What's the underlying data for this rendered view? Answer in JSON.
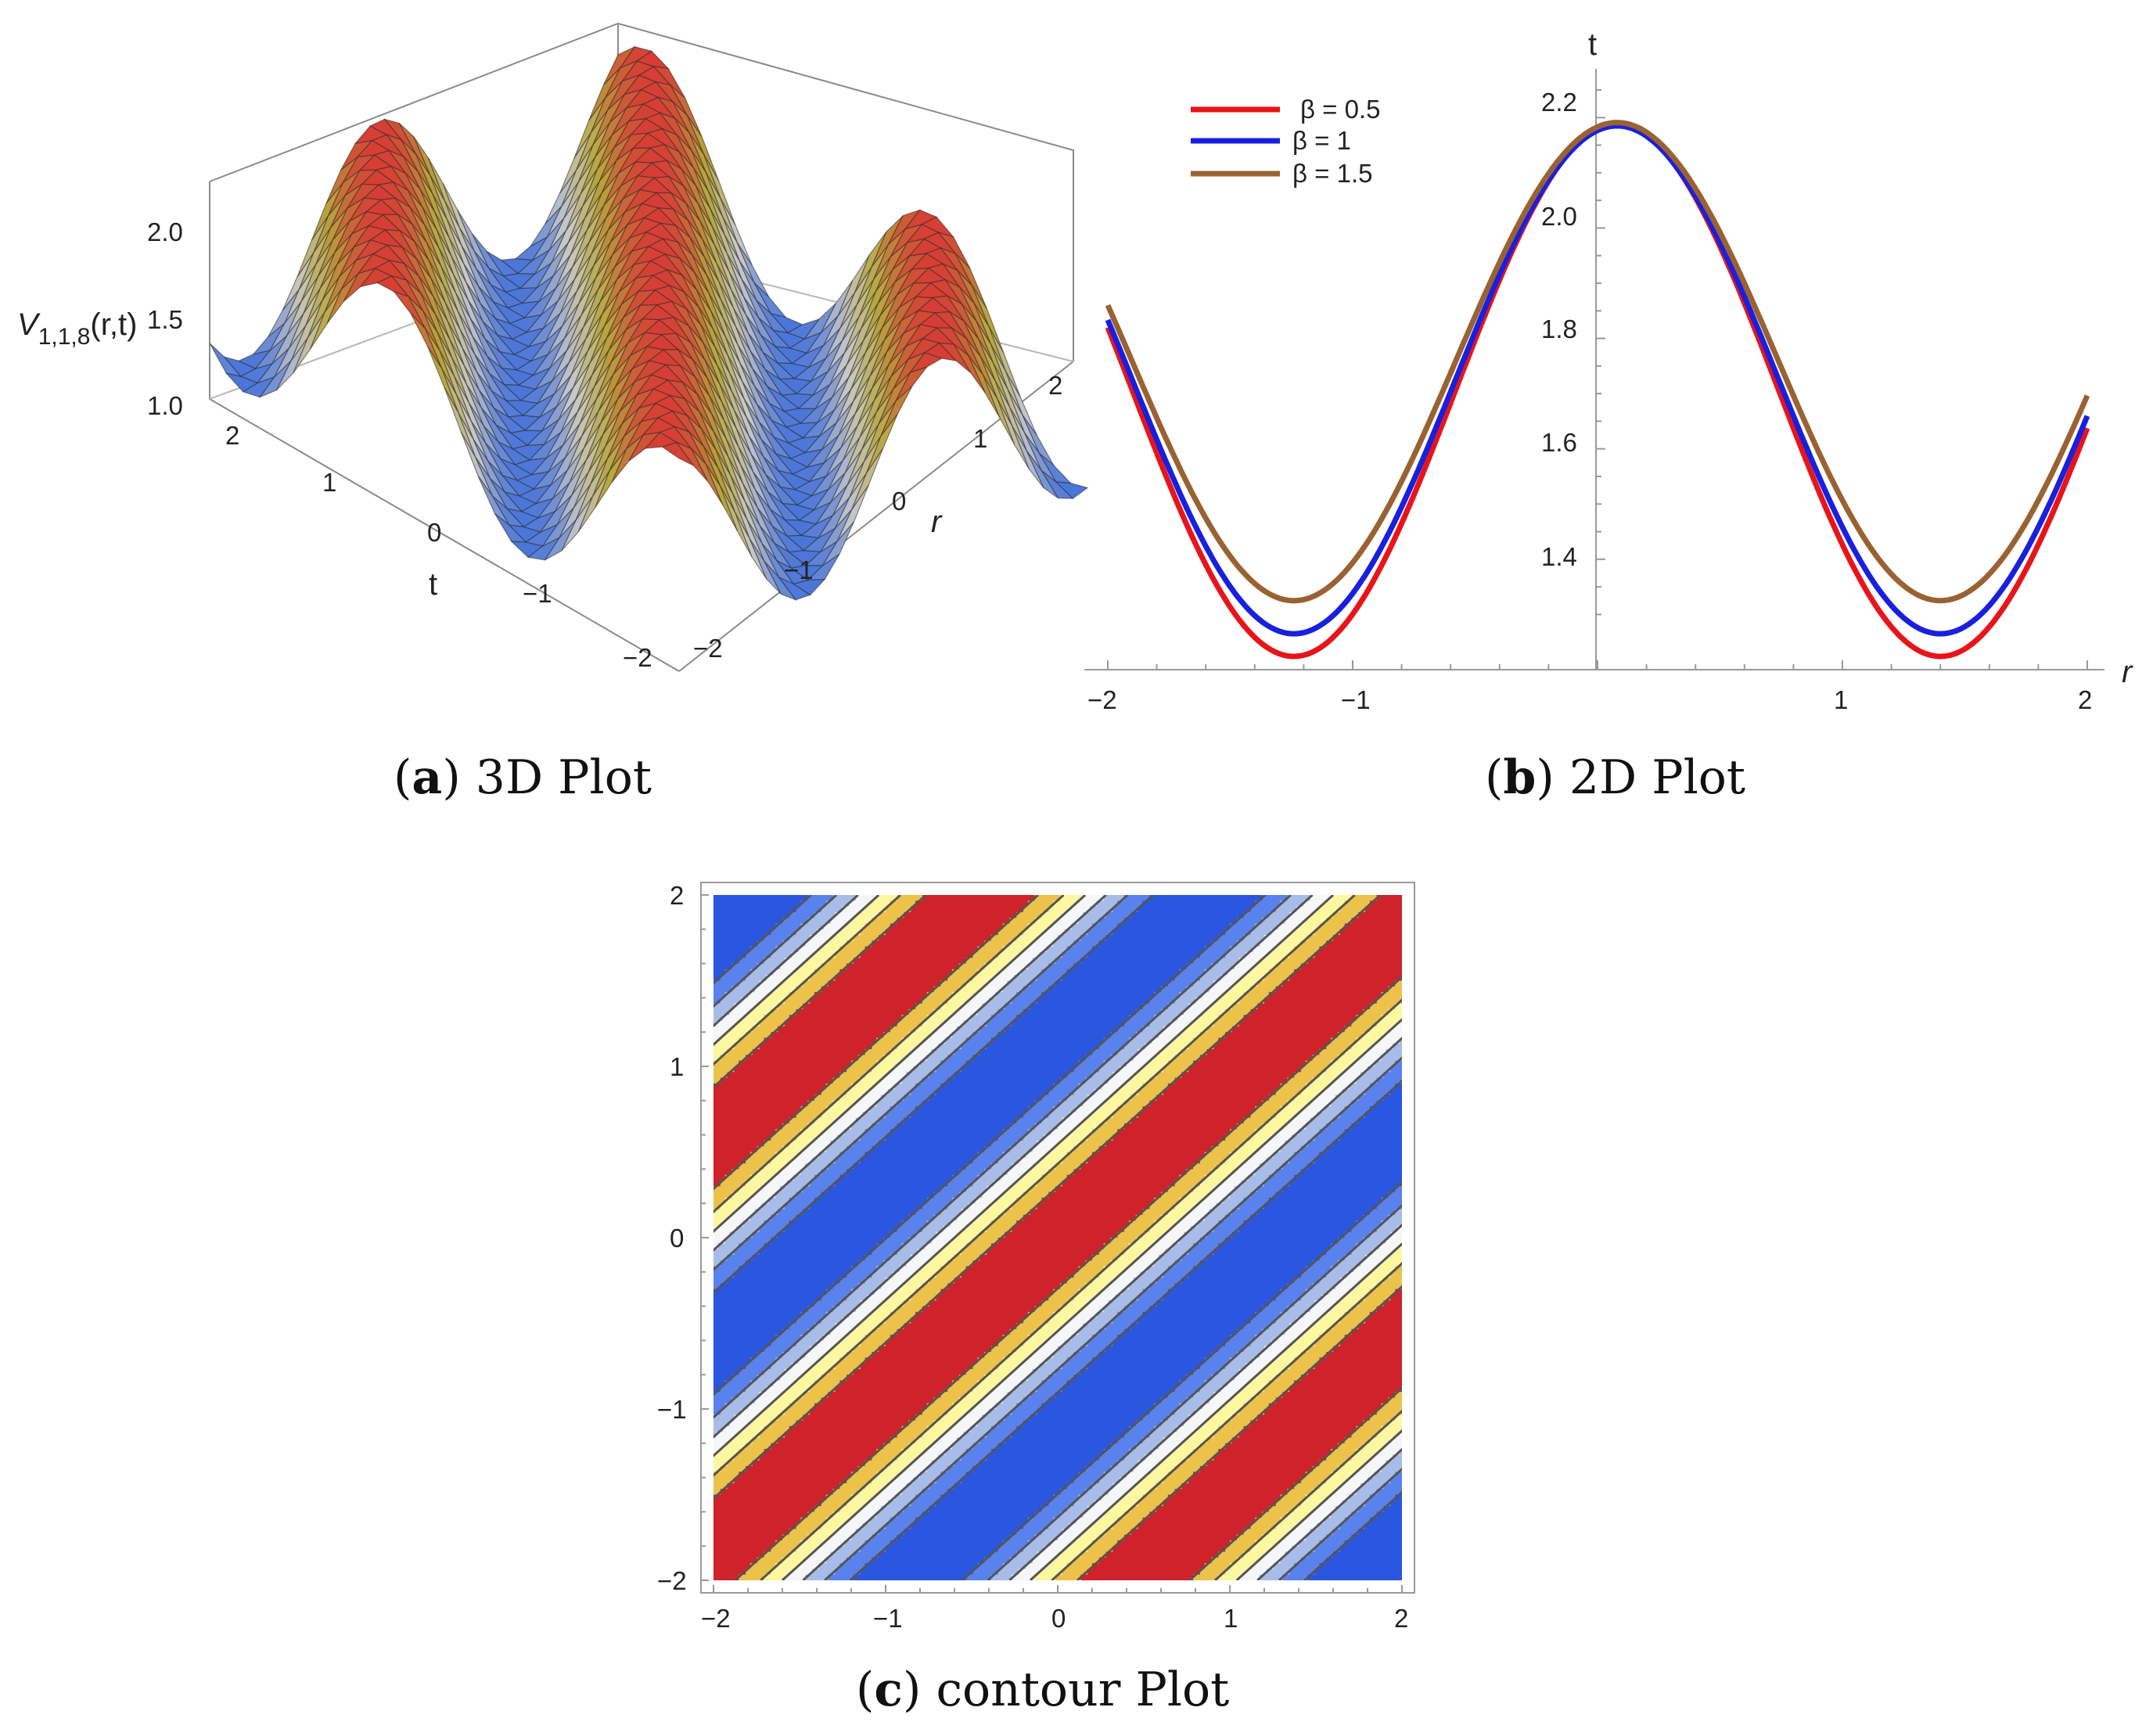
{
  "chart_data": [
    {
      "id": "a",
      "type": "surface3d",
      "caption_letter": "a",
      "caption_text": "3D Plot",
      "zlabel": "V1,1,8(r,t)",
      "zlabel_main": "V",
      "zlabel_sub": "1,1,8",
      "zlabel_args": "(r,t)",
      "xlabel": "r",
      "ylabel": "t",
      "r_ticks": [
        "−2",
        "−1",
        "0",
        "1",
        "2"
      ],
      "t_ticks": [
        "−2",
        "−1",
        "0",
        "1",
        "2"
      ],
      "z_ticks": [
        "1.0",
        "1.5",
        "2.0"
      ],
      "r_range": [
        -2,
        2
      ],
      "t_range": [
        -2,
        2
      ],
      "z_range": [
        1.0,
        2.2
      ],
      "colors": [
        "#3a6bdc",
        "#c8c8c8",
        "#b8a63a",
        "#d83a34"
      ]
    },
    {
      "id": "b",
      "type": "line",
      "caption_letter": "b",
      "caption_text": "2D Plot",
      "xlabel": "r",
      "ylabel": "t",
      "x_ticks": [
        "−2",
        "−1",
        "1",
        "2"
      ],
      "x_tick_values": [
        -2,
        -1,
        1,
        2
      ],
      "y_ticks": [
        "1.4",
        "1.6",
        "1.8",
        "2.0",
        "2.2"
      ],
      "y_tick_values": [
        1.4,
        1.6,
        1.8,
        2.0,
        2.2
      ],
      "xlim": [
        -2,
        2
      ],
      "ylim": [
        1.2,
        2.25
      ],
      "series": [
        {
          "name": "β = 0.5",
          "color": "#e8141a",
          "mean": 1.706,
          "amp": 0.482,
          "omega": 2.38,
          "shift": 0.08
        },
        {
          "name": "β = 1",
          "color": "#1820e0",
          "mean": 1.725,
          "amp": 0.46,
          "omega": 2.38,
          "shift": 0.08
        },
        {
          "name": "β =  1.5",
          "color": "#9a6232",
          "mean": 1.758,
          "amp": 0.433,
          "omega": 2.38,
          "shift": 0.08
        }
      ]
    },
    {
      "id": "c",
      "type": "contour",
      "caption_letter": "c",
      "caption_text": "contour Plot",
      "x_ticks": [
        "−2",
        "−1",
        "0",
        "1",
        "2"
      ],
      "y_ticks": [
        "−2",
        "−1",
        "0",
        "1",
        "2"
      ],
      "xlim": [
        -2,
        2
      ],
      "ylim": [
        -2,
        2
      ],
      "band_colors": [
        "#2a56e0",
        "#5a82ee",
        "#a8bcea",
        "#f4f6f8",
        "#fdf7a0",
        "#ecc24a",
        "#d0222a"
      ],
      "wave": {
        "omega": 2.38,
        "t_coefficient": 1.1
      }
    }
  ]
}
